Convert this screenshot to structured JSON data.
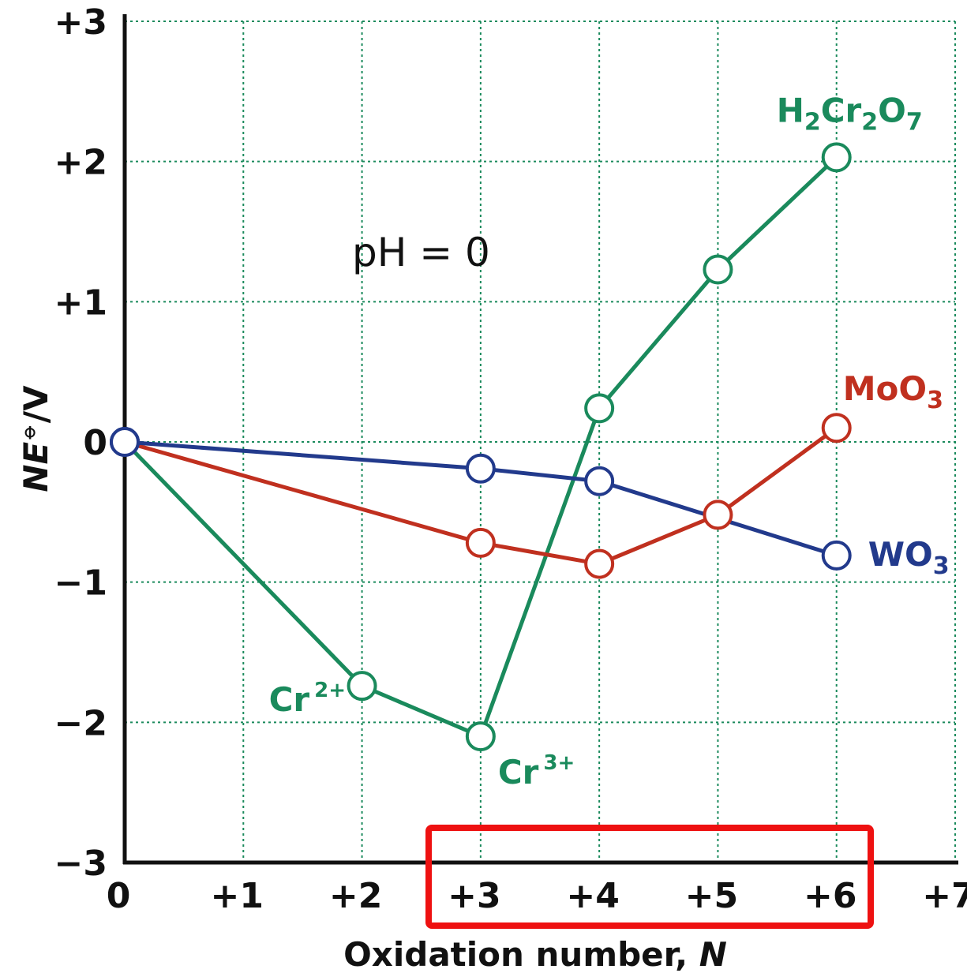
{
  "chart_data": {
    "type": "line",
    "xlabel_text": "Oxidation number, ",
    "xlabel_var": "N",
    "ylabel_var": "NE",
    "ylabel_sup": "⦵",
    "ylabel_unit": "/V",
    "xlim": [
      0,
      7
    ],
    "ylim": [
      -3,
      3
    ],
    "x_ticks": [
      0,
      1,
      2,
      3,
      4,
      5,
      6,
      7
    ],
    "x_tick_labels": [
      "0",
      "+1",
      "+2",
      "+3",
      "+4",
      "+5",
      "+6",
      "+7"
    ],
    "y_ticks": [
      -3,
      -2,
      -1,
      0,
      1,
      2,
      3
    ],
    "y_tick_labels": [
      "−3",
      "−2",
      "−1",
      "0",
      "+1",
      "+2",
      "+3"
    ],
    "grid": true,
    "annotation": "pH = 0",
    "series": [
      {
        "id": "cr",
        "color": "#1a8a5c",
        "x": [
          0,
          2,
          3,
          4,
          5,
          6
        ],
        "y": [
          0,
          -1.74,
          -2.1,
          0.24,
          1.23,
          2.03
        ]
      },
      {
        "id": "mo",
        "color": "#c0301f",
        "x": [
          0,
          3,
          4,
          5,
          6
        ],
        "y": [
          0,
          -0.72,
          -0.87,
          -0.52,
          0.1
        ]
      },
      {
        "id": "w",
        "color": "#223a8c",
        "x": [
          0,
          3,
          4,
          6
        ],
        "y": [
          0,
          -0.19,
          -0.28,
          -0.81
        ]
      }
    ],
    "point_labels": [
      {
        "series": "cr",
        "main": "H",
        "parts": [
          [
            "2",
            "sub"
          ],
          [
            "Cr",
            ""
          ],
          [
            "2",
            "sub"
          ],
          [
            "O",
            ""
          ],
          [
            "7",
            "sub"
          ]
        ]
      },
      {
        "series": "mo",
        "main": "MoO",
        "parts": [
          [
            "3",
            "sub"
          ]
        ]
      },
      {
        "series": "w",
        "main": "WO",
        "parts": [
          [
            "3",
            "sub"
          ]
        ]
      },
      {
        "series": "cr",
        "main": "Cr",
        "parts": [
          [
            "2+",
            "sup"
          ]
        ]
      },
      {
        "series": "cr",
        "main": "Cr",
        "parts": [
          [
            "3+",
            "sup"
          ]
        ]
      }
    ]
  }
}
